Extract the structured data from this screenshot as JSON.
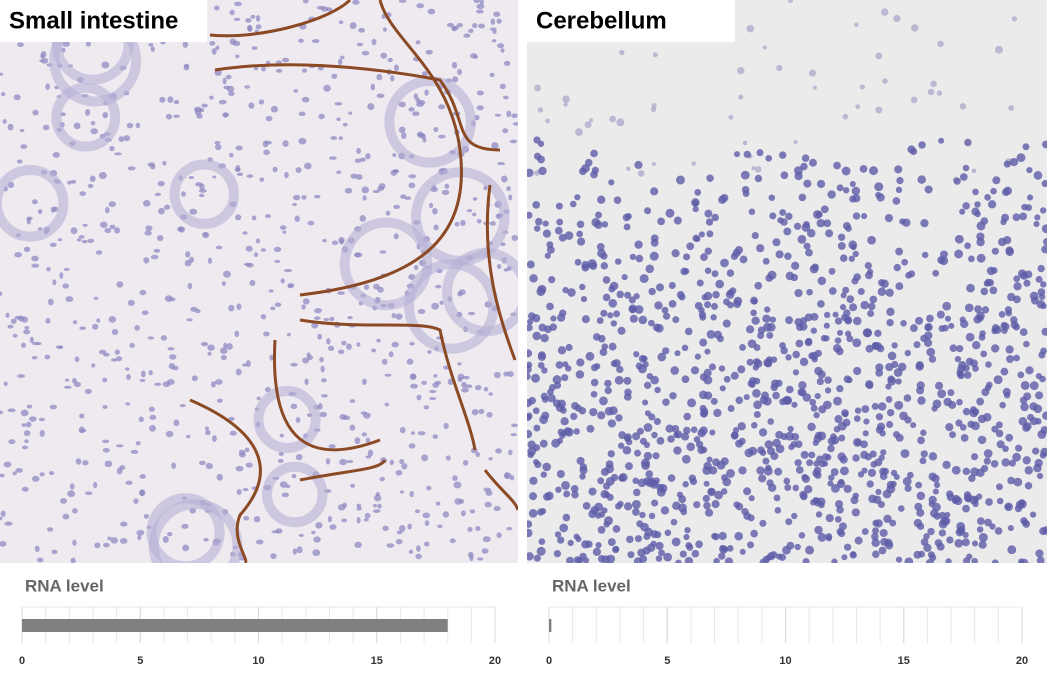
{
  "chart_data": [
    {
      "type": "bar",
      "title": "Small intestine",
      "xlabel": "RNA level",
      "values": [
        18
      ],
      "color": "#808080",
      "xlim": [
        0,
        20
      ],
      "xticks": [
        0,
        5,
        10,
        15,
        20
      ],
      "xminor": [
        0,
        1,
        2,
        3,
        4,
        5,
        6,
        7,
        8,
        9,
        10,
        11,
        12,
        13,
        14,
        15,
        16,
        17,
        18,
        19,
        20
      ],
      "grid": true
    },
    {
      "type": "bar",
      "title": "Cerebellum",
      "xlabel": "RNA level",
      "values": [
        0.1
      ],
      "color": "#808080",
      "xlim": [
        0,
        20
      ],
      "xticks": [
        0,
        5,
        10,
        15,
        20
      ],
      "xminor": [
        0,
        1,
        2,
        3,
        4,
        5,
        6,
        7,
        8,
        9,
        10,
        11,
        12,
        13,
        14,
        15,
        16,
        17,
        18,
        19,
        20
      ],
      "grid": true
    }
  ]
}
